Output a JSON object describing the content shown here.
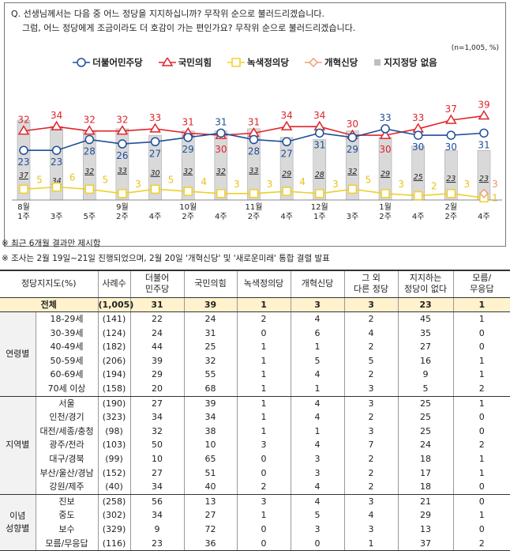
{
  "question": [
    "Q. 선생님께서는 다음 중 어느 정당을 지지하십니까? 무작위 순으로 불러드리겠습니다.",
    "그럼, 어느 정당에게 조금이라도 더 호감이 가는 편인가요? 무작위 순으로 불러드리겠습니다."
  ],
  "sample_note": "(n=1,005, %)",
  "notes": [
    "※ 최근 6개월 결과만 제시함",
    "※ 조사는 2월 19일~21일 진행되었으며, 2월 20일 '개혁신당' 및 '새로운미래' 통합 결렬 발표"
  ],
  "chart_data": {
    "type": "line",
    "x": [
      [
        "8월",
        "1주"
      ],
      [
        "",
        "3주"
      ],
      [
        "",
        "5주"
      ],
      [
        "9월",
        "2주"
      ],
      [
        "",
        "4주"
      ],
      [
        "10월",
        "2주"
      ],
      [
        "",
        "4주"
      ],
      [
        "11월",
        "2주"
      ],
      [
        "",
        "4주"
      ],
      [
        "12월",
        "1주"
      ],
      [
        "",
        "3주"
      ],
      [
        "1월",
        "2주"
      ],
      [
        "",
        "4주"
      ],
      [
        "2월",
        "2주"
      ],
      [
        "",
        "4주"
      ]
    ],
    "series": [
      {
        "name": "더불어민주당",
        "type": "line",
        "marker": "circle",
        "color": "#1f4e99",
        "values": [
          23,
          23,
          28,
          26,
          27,
          29,
          31,
          28,
          27,
          31,
          29,
          33,
          30,
          30,
          31
        ]
      },
      {
        "name": "국민의힘",
        "type": "line",
        "marker": "triangle",
        "color": "#e0242b",
        "values": [
          32,
          34,
          32,
          32,
          33,
          31,
          30,
          31,
          34,
          34,
          30,
          30,
          33,
          37,
          39
        ]
      },
      {
        "name": "녹색정의당",
        "type": "line",
        "marker": "square",
        "color": "#f0cf2a",
        "values": [
          5,
          6,
          5,
          3,
          5,
          4,
          3,
          3,
          4,
          3,
          5,
          3,
          2,
          3,
          1
        ]
      },
      {
        "name": "개혁신당",
        "type": "line",
        "marker": "diamond",
        "color": "#f0a070",
        "values": [
          null,
          null,
          null,
          null,
          null,
          null,
          null,
          null,
          null,
          null,
          null,
          null,
          null,
          null,
          3
        ]
      },
      {
        "name": "지지정당 없음",
        "type": "bar",
        "color": "#d9d9d9",
        "values": [
          37,
          34,
          32,
          33,
          30,
          32,
          32,
          33,
          29,
          28,
          32,
          29,
          25,
          23,
          23
        ]
      }
    ],
    "legend": "top-center",
    "ylim": [
      0,
      45
    ],
    "grid": false
  },
  "table": {
    "headers": [
      "정당지지도(%)",
      "사례수",
      "더불어\n민주당",
      "국민의힘",
      "녹색정의당",
      "개혁신당",
      "그 외\n다른 정당",
      "지지하는\n정당이 없다",
      "모름/\n무응답"
    ],
    "total": [
      "전체",
      "(1,005)",
      "31",
      "39",
      "1",
      "3",
      "3",
      "23",
      "1"
    ],
    "groups": [
      {
        "label": "연령별",
        "rows": [
          [
            "18-29세",
            "(141)",
            "22",
            "24",
            "2",
            "4",
            "2",
            "45",
            "1"
          ],
          [
            "30-39세",
            "(124)",
            "24",
            "31",
            "0",
            "6",
            "4",
            "35",
            "0"
          ],
          [
            "40-49세",
            "(182)",
            "44",
            "25",
            "1",
            "1",
            "2",
            "27",
            "0"
          ],
          [
            "50-59세",
            "(206)",
            "39",
            "32",
            "1",
            "5",
            "5",
            "16",
            "1"
          ],
          [
            "60-69세",
            "(194)",
            "29",
            "55",
            "1",
            "4",
            "2",
            "9",
            "1"
          ],
          [
            "70세 이상",
            "(158)",
            "20",
            "68",
            "1",
            "1",
            "3",
            "5",
            "2"
          ]
        ]
      },
      {
        "label": "지역별",
        "rows": [
          [
            "서울",
            "(190)",
            "27",
            "39",
            "1",
            "4",
            "3",
            "25",
            "1"
          ],
          [
            "인천/경기",
            "(323)",
            "34",
            "34",
            "1",
            "4",
            "2",
            "25",
            "0"
          ],
          [
            "대전/세종/충청",
            "(98)",
            "32",
            "38",
            "1",
            "1",
            "3",
            "25",
            "0"
          ],
          [
            "광주/전라",
            "(103)",
            "50",
            "10",
            "3",
            "4",
            "7",
            "24",
            "2"
          ],
          [
            "대구/경북",
            "(99)",
            "10",
            "65",
            "0",
            "3",
            "2",
            "18",
            "1"
          ],
          [
            "부산/울산/경남",
            "(152)",
            "27",
            "51",
            "0",
            "3",
            "2",
            "17",
            "1"
          ],
          [
            "강원/제주",
            "(40)",
            "34",
            "40",
            "2",
            "4",
            "2",
            "18",
            "0"
          ]
        ]
      },
      {
        "label": "이념\n성향별",
        "rows": [
          [
            "진보",
            "(258)",
            "56",
            "13",
            "3",
            "4",
            "3",
            "21",
            "0"
          ],
          [
            "중도",
            "(302)",
            "34",
            "27",
            "1",
            "5",
            "4",
            "29",
            "1"
          ],
          [
            "보수",
            "(329)",
            "9",
            "72",
            "0",
            "3",
            "3",
            "13",
            "0"
          ],
          [
            "모름/무응답",
            "(116)",
            "23",
            "36",
            "0",
            "0",
            "1",
            "37",
            "2"
          ]
        ]
      }
    ]
  }
}
